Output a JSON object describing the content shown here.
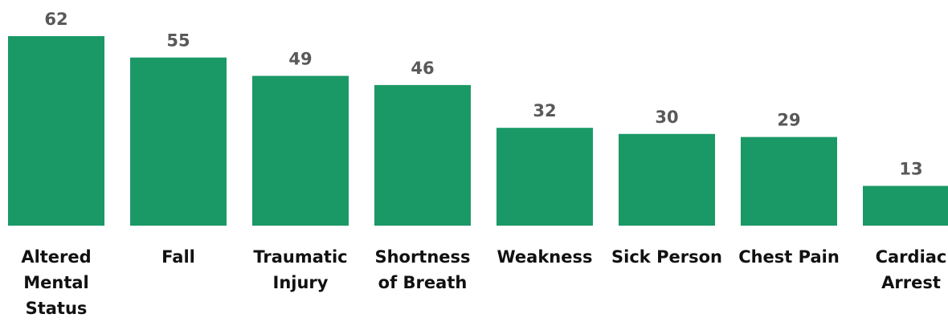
{
  "chart_data": {
    "type": "bar",
    "categories": [
      "Altered Mental Status",
      "Fall",
      "Traumatic Injury",
      "Shortness of Breath",
      "Weakness",
      "Sick Person",
      "Chest Pain",
      "Cardiac Arrest"
    ],
    "values": [
      62,
      55,
      49,
      46,
      32,
      30,
      29,
      13
    ],
    "color": "#1a9966"
  }
}
